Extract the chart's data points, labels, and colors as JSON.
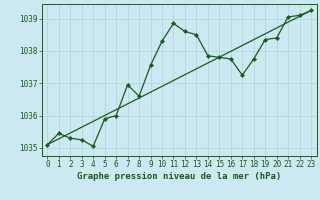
{
  "title": "Graphe pression niveau de la mer (hPa)",
  "bg_color": "#cce8f0",
  "line_color": "#1a5c1a",
  "marker_color": "#1a5c1a",
  "grid_color": "#b8d8e0",
  "xlim": [
    -0.5,
    23.5
  ],
  "ylim": [
    1034.75,
    1039.45
  ],
  "yticks": [
    1035,
    1036,
    1037,
    1038,
    1039
  ],
  "xticks": [
    0,
    1,
    2,
    3,
    4,
    5,
    6,
    7,
    8,
    9,
    10,
    11,
    12,
    13,
    14,
    15,
    16,
    17,
    18,
    19,
    20,
    21,
    22,
    23
  ],
  "series1_x": [
    0,
    1,
    2,
    3,
    4,
    5,
    6,
    7,
    8,
    9,
    10,
    11,
    12,
    13,
    14,
    15,
    16,
    17,
    18,
    19,
    20,
    21,
    22,
    23
  ],
  "series1_y": [
    1035.1,
    1035.45,
    1035.3,
    1035.25,
    1035.05,
    1035.9,
    1036.0,
    1036.95,
    1036.6,
    1037.55,
    1038.3,
    1038.85,
    1038.6,
    1038.5,
    1037.85,
    1037.8,
    1037.75,
    1037.25,
    1037.75,
    1038.35,
    1038.4,
    1039.05,
    1039.1,
    1039.25
  ],
  "series2_x": [
    0,
    23
  ],
  "series2_y": [
    1035.1,
    1039.25
  ],
  "tick_fontsize": 5.5,
  "title_fontsize": 6.5
}
